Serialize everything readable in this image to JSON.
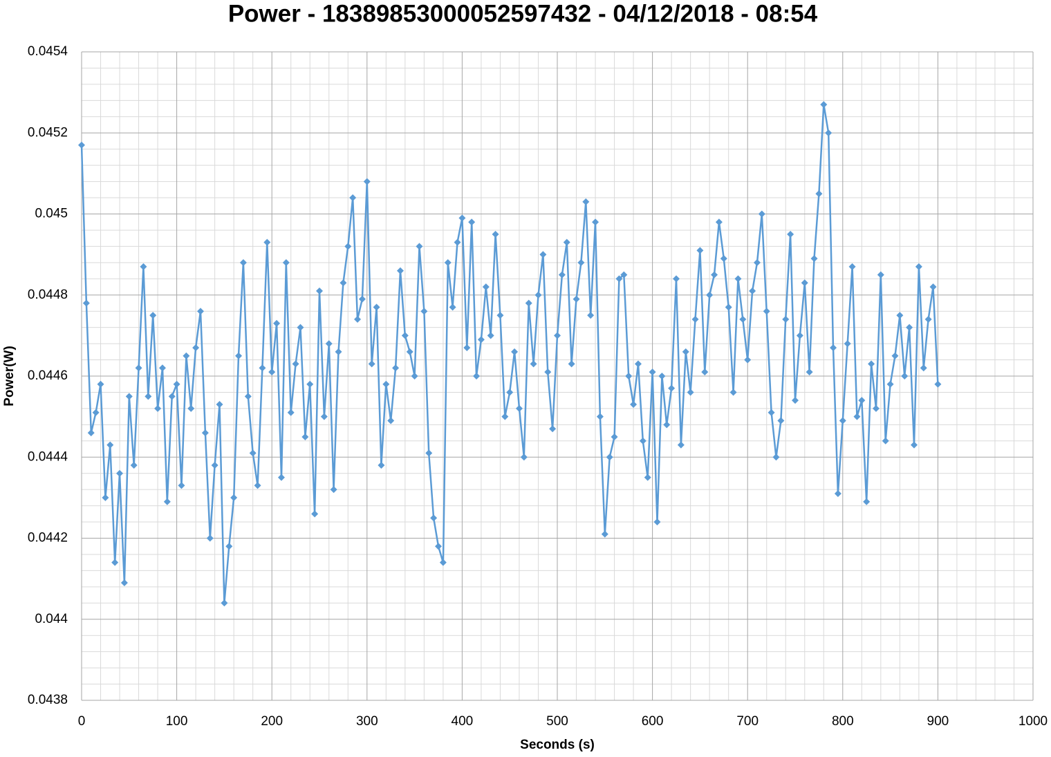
{
  "chart_data": {
    "type": "line",
    "title": "Power - 1838985300005259​7432 - 04/12/2018 - 08:54",
    "x_label": "Seconds (s)",
    "y_label": "Power(W)",
    "series": [
      {
        "name": "Power",
        "color": "#5b9bd5",
        "x": [
          0,
          5,
          10,
          15,
          20,
          25,
          30,
          35,
          40,
          45,
          50,
          55,
          60,
          65,
          70,
          75,
          80,
          85,
          90,
          95,
          100,
          105,
          110,
          115,
          120,
          125,
          130,
          135,
          140,
          145,
          150,
          155,
          160,
          165,
          170,
          175,
          180,
          185,
          190,
          195,
          200,
          205,
          210,
          215,
          220,
          225,
          230,
          235,
          240,
          245,
          250,
          255,
          260,
          265,
          270,
          275,
          280,
          285,
          290,
          295,
          300,
          305,
          310,
          315,
          320,
          325,
          330,
          335,
          340,
          345,
          350,
          355,
          360,
          365,
          370,
          375,
          380,
          385,
          390,
          395,
          400,
          405,
          410,
          415,
          420,
          425,
          430,
          435,
          440,
          445,
          450,
          455,
          460,
          465,
          470,
          475,
          480,
          485,
          490,
          495,
          500,
          505,
          510,
          515,
          520,
          525,
          530,
          535,
          540,
          545,
          550,
          555,
          560,
          565,
          570,
          575,
          580,
          585,
          590,
          595,
          600,
          605,
          610,
          615,
          620,
          625,
          630,
          635,
          640,
          645,
          650,
          655,
          660,
          665,
          670,
          675,
          680,
          685,
          690,
          695,
          700,
          705,
          710,
          715,
          720,
          725,
          730,
          735,
          740,
          745,
          750,
          755,
          760,
          765,
          770,
          775,
          780,
          785,
          790,
          795,
          800,
          805,
          810,
          815,
          820,
          825,
          830,
          835,
          840,
          845,
          850,
          855,
          860,
          865,
          870,
          875,
          880,
          885,
          890,
          895,
          900
        ],
        "values": [
          0.04517,
          0.04478,
          0.04446,
          0.04451,
          0.04458,
          0.0443,
          0.04443,
          0.04414,
          0.04436,
          0.04409,
          0.04455,
          0.04438,
          0.04462,
          0.04487,
          0.04455,
          0.04475,
          0.04452,
          0.04462,
          0.04429,
          0.04455,
          0.04458,
          0.04433,
          0.04465,
          0.04452,
          0.04467,
          0.04476,
          0.04446,
          0.0442,
          0.04438,
          0.04453,
          0.04404,
          0.04418,
          0.0443,
          0.04465,
          0.04488,
          0.04455,
          0.04441,
          0.04433,
          0.04462,
          0.04493,
          0.04461,
          0.04473,
          0.04435,
          0.04488,
          0.04451,
          0.04463,
          0.04472,
          0.04445,
          0.04458,
          0.04426,
          0.04481,
          0.0445,
          0.04468,
          0.04432,
          0.04466,
          0.04483,
          0.04492,
          0.04504,
          0.04474,
          0.04479,
          0.04508,
          0.04463,
          0.04477,
          0.04438,
          0.04458,
          0.04449,
          0.04462,
          0.04486,
          0.0447,
          0.04466,
          0.0446,
          0.04492,
          0.04476,
          0.04441,
          0.04425,
          0.04418,
          0.04414,
          0.04488,
          0.04477,
          0.04493,
          0.04499,
          0.04467,
          0.04498,
          0.0446,
          0.04469,
          0.04482,
          0.0447,
          0.04495,
          0.04475,
          0.0445,
          0.04456,
          0.04466,
          0.04452,
          0.0444,
          0.04478,
          0.04463,
          0.0448,
          0.0449,
          0.04461,
          0.04447,
          0.0447,
          0.04485,
          0.04493,
          0.04463,
          0.04479,
          0.04488,
          0.04503,
          0.04475,
          0.04498,
          0.0445,
          0.04421,
          0.0444,
          0.04445,
          0.04484,
          0.04485,
          0.0446,
          0.04453,
          0.04463,
          0.04444,
          0.04435,
          0.04461,
          0.04424,
          0.0446,
          0.04448,
          0.04457,
          0.04484,
          0.04443,
          0.04466,
          0.04456,
          0.04474,
          0.04491,
          0.04461,
          0.0448,
          0.04485,
          0.04498,
          0.04489,
          0.04477,
          0.04456,
          0.04484,
          0.04474,
          0.04464,
          0.04481,
          0.04488,
          0.045,
          0.04476,
          0.04451,
          0.0444,
          0.04449,
          0.04474,
          0.04495,
          0.04454,
          0.0447,
          0.04483,
          0.04461,
          0.04489,
          0.04505,
          0.04527,
          0.0452,
          0.04467,
          0.04431,
          0.04449,
          0.04468,
          0.04487,
          0.0445,
          0.04454,
          0.04429,
          0.04463,
          0.04452,
          0.04485,
          0.04444,
          0.04458,
          0.04465,
          0.04475,
          0.0446,
          0.04472,
          0.04443,
          0.04487,
          0.04462,
          0.04474,
          0.04482,
          0.04458
        ]
      }
    ],
    "xlim": [
      0,
      1000
    ],
    "xticks": [
      0,
      100,
      200,
      300,
      400,
      500,
      600,
      700,
      800,
      900,
      1000
    ],
    "ylim": [
      0.0438,
      0.0454
    ],
    "yticks": [
      0.0438,
      0.044,
      0.0442,
      0.0444,
      0.0446,
      0.0448,
      0.045,
      0.0452,
      0.0454
    ],
    "grid": true,
    "minor_grid": true,
    "marker": "diamond"
  }
}
